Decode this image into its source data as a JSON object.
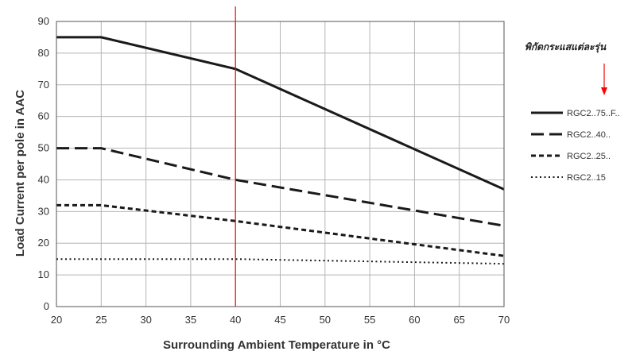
{
  "chart_data": {
    "type": "line",
    "title": "",
    "xlabel": "Surrounding Ambient Temperature in °C",
    "ylabel": "Load Current per pole in AAC",
    "xlim": [
      20,
      70
    ],
    "ylim": [
      0,
      90
    ],
    "x_ticks": [
      20,
      25,
      30,
      35,
      40,
      45,
      50,
      55,
      60,
      65,
      70
    ],
    "y_ticks": [
      0,
      10,
      20,
      30,
      40,
      50,
      60,
      70,
      80,
      90
    ],
    "grid": true,
    "legend_position": "right",
    "series": [
      {
        "name": "RGC2..75..F..",
        "style": "solid",
        "x": [
          20,
          25,
          40,
          70
        ],
        "y": [
          85,
          85,
          75,
          37
        ]
      },
      {
        "name": "RGC2..40..",
        "style": "dashed",
        "x": [
          20,
          25,
          40,
          70
        ],
        "y": [
          50,
          50,
          40,
          25.5
        ]
      },
      {
        "name": "RGC2..25..",
        "style": "short-dashed",
        "x": [
          20,
          25,
          40,
          70
        ],
        "y": [
          32,
          32,
          27,
          16
        ]
      },
      {
        "name": "RGC2..15",
        "style": "dotted",
        "x": [
          20,
          25,
          40,
          70
        ],
        "y": [
          15,
          15,
          15,
          13.5
        ]
      }
    ],
    "reference_line": {
      "x": 40,
      "color": "#ff0000"
    },
    "annotation": {
      "text": "พิกัดกระแสแต่ละรุ่น",
      "arrow_color": "#ff0000"
    }
  }
}
